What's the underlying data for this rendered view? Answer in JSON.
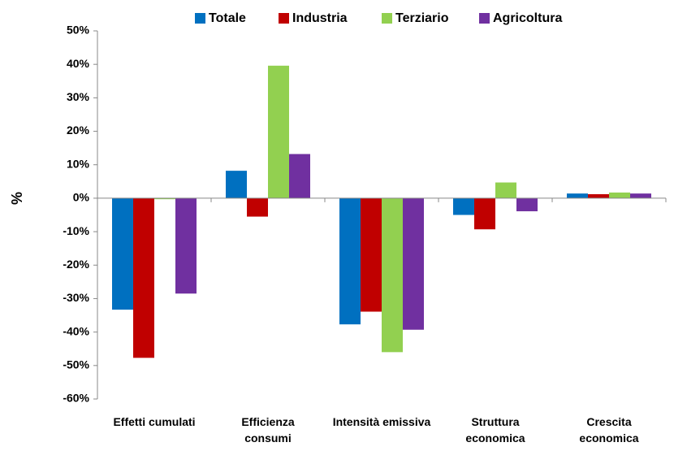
{
  "chart_data": {
    "type": "bar",
    "y_label": "%",
    "categories": [
      "Effetti cumulati",
      "Efficienza consumi",
      "Intensità emissiva",
      "Struttura economica",
      "Crescita economica"
    ],
    "series": [
      {
        "name": "Totale",
        "color": "#0070c0",
        "values": [
          -33.3,
          8.2,
          -37.7,
          -5.0,
          1.4
        ]
      },
      {
        "name": "Industria",
        "color": "#c00000",
        "values": [
          -47.7,
          -5.5,
          -33.9,
          -9.3,
          1.2
        ]
      },
      {
        "name": "Terziario",
        "color": "#92d050",
        "values": [
          -0.3,
          39.6,
          -46.0,
          4.7,
          1.7
        ]
      },
      {
        "name": "Agricoltura",
        "color": "#7030a0",
        "values": [
          -28.5,
          13.2,
          -39.3,
          -3.9,
          1.4
        ]
      }
    ],
    "ylim": [
      -60,
      50
    ],
    "yticks": [
      {
        "value": -60,
        "label": "-60%"
      },
      {
        "value": -50,
        "label": "-50%"
      },
      {
        "value": -40,
        "label": "-40%"
      },
      {
        "value": -30,
        "label": "-30%"
      },
      {
        "value": -20,
        "label": "-20%"
      },
      {
        "value": -10,
        "label": "-10%"
      },
      {
        "value": 0,
        "label": "0%"
      },
      {
        "value": 10,
        "label": "10%"
      },
      {
        "value": 20,
        "label": "20%"
      },
      {
        "value": 30,
        "label": "30%"
      },
      {
        "value": 40,
        "label": "40%"
      },
      {
        "value": 50,
        "label": "50%"
      }
    ],
    "grid": false,
    "legend": "top"
  }
}
